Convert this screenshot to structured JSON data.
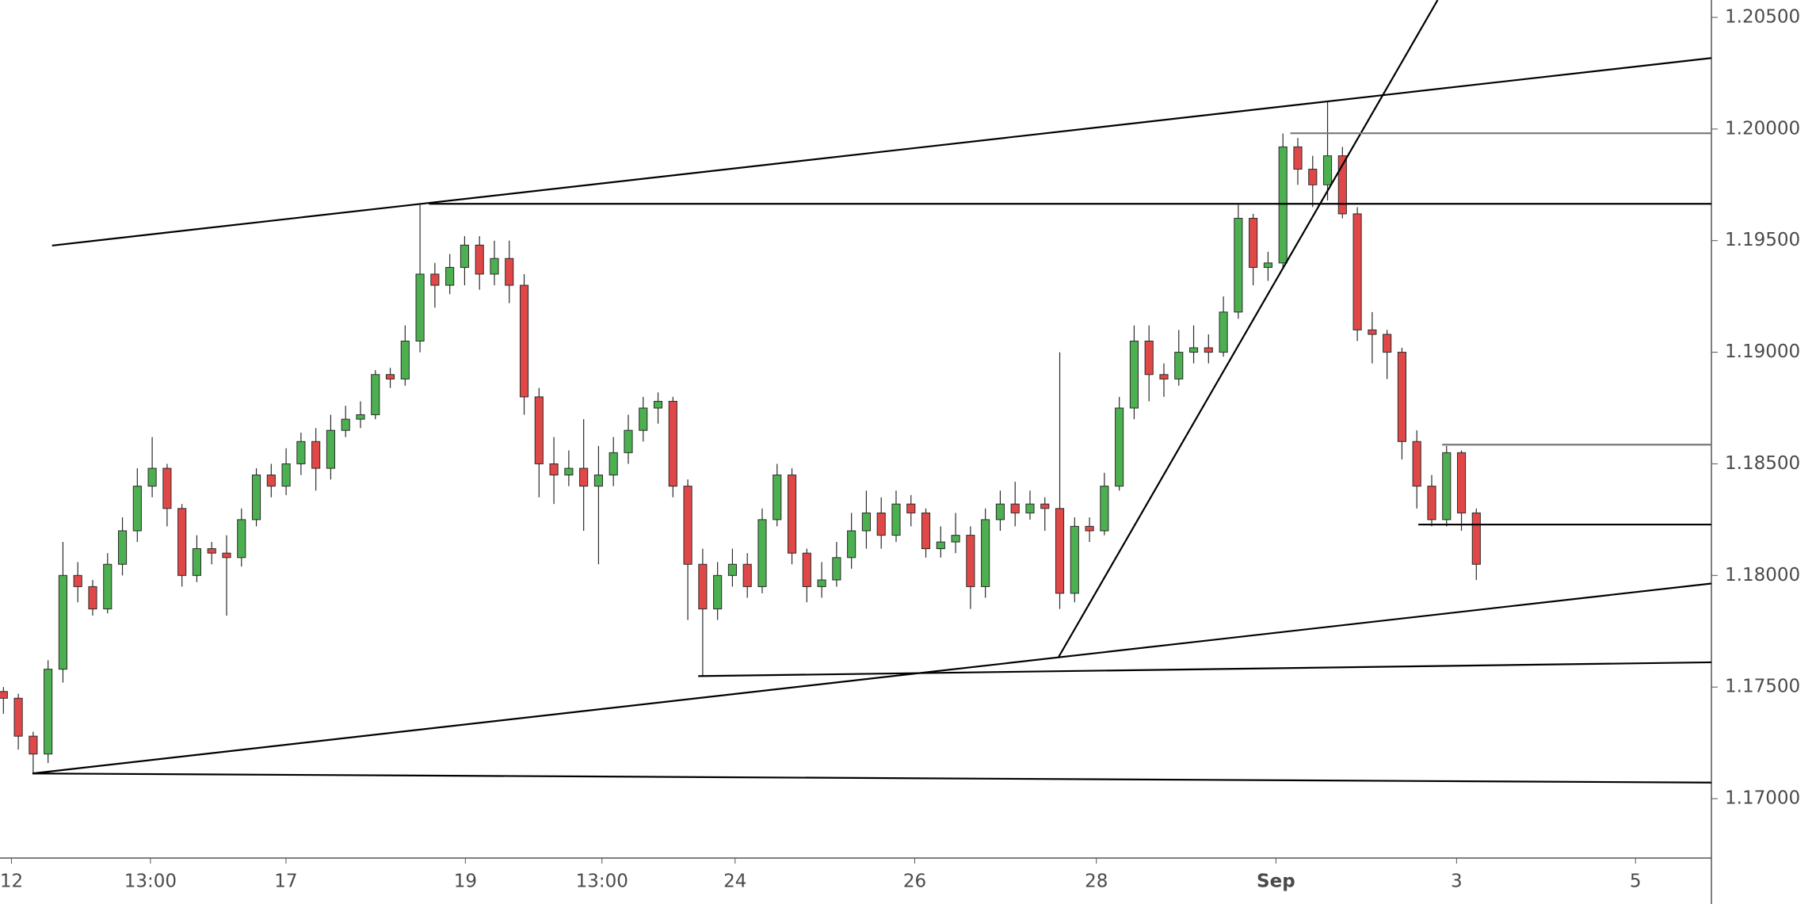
{
  "chart_data": {
    "type": "candlestick",
    "open": [
      1.1748,
      1.1745,
      1.1728,
      1.172,
      1.1758,
      1.18,
      1.1795,
      1.1785,
      1.1805,
      1.182,
      1.184,
      1.1848,
      1.183,
      1.18,
      1.1812,
      1.181,
      1.1808,
      1.1825,
      1.1845,
      1.184,
      1.185,
      1.186,
      1.1848,
      1.1865,
      1.187,
      1.1872,
      1.189,
      1.1888,
      1.1905,
      1.1935,
      1.193,
      1.1938,
      1.1948,
      1.1935,
      1.1942,
      1.193,
      1.188,
      1.185,
      1.1845,
      1.1848,
      1.184,
      1.1845,
      1.1855,
      1.1865,
      1.1875,
      1.1878,
      1.184,
      1.1805,
      1.1785,
      1.18,
      1.1805,
      1.1795,
      1.1825,
      1.1845,
      1.181,
      1.1795,
      1.1798,
      1.1808,
      1.182,
      1.1828,
      1.1818,
      1.1832,
      1.1828,
      1.1812,
      1.1815,
      1.1818,
      1.1795,
      1.1825,
      1.1832,
      1.1828,
      1.1832,
      1.183,
      1.1792,
      1.1822,
      1.182,
      1.184,
      1.1875,
      1.1905,
      1.189,
      1.1888,
      1.19,
      1.1902,
      1.19,
      1.1918,
      1.196,
      1.1938,
      1.194,
      1.1992,
      1.1982,
      1.1975,
      1.1988,
      1.1962,
      1.191,
      1.1908,
      1.19,
      1.186,
      1.184,
      1.1825,
      1.1855,
      1.1828
    ],
    "high": [
      1.175,
      1.1747,
      1.173,
      1.1762,
      1.1815,
      1.1806,
      1.1798,
      1.181,
      1.1826,
      1.1848,
      1.1862,
      1.185,
      1.1832,
      1.1818,
      1.1815,
      1.1818,
      1.183,
      1.1848,
      1.185,
      1.1857,
      1.1864,
      1.1866,
      1.1872,
      1.1876,
      1.1878,
      1.1892,
      1.1893,
      1.1912,
      1.1966,
      1.194,
      1.1944,
      1.1952,
      1.1952,
      1.195,
      1.195,
      1.1935,
      1.1884,
      1.1862,
      1.1856,
      1.187,
      1.1858,
      1.1862,
      1.1872,
      1.188,
      1.1882,
      1.188,
      1.1843,
      1.1812,
      1.1806,
      1.1812,
      1.181,
      1.183,
      1.185,
      1.1848,
      1.1812,
      1.1806,
      1.1815,
      1.1828,
      1.1838,
      1.1835,
      1.1838,
      1.1836,
      1.183,
      1.1822,
      1.1828,
      1.1822,
      1.183,
      1.1838,
      1.1842,
      1.1838,
      1.1835,
      1.19,
      1.1826,
      1.1826,
      1.1846,
      1.188,
      1.1912,
      1.1912,
      1.1895,
      1.191,
      1.1912,
      1.1908,
      1.1925,
      1.1966,
      1.1962,
      1.1945,
      1.1998,
      1.1996,
      1.1988,
      1.2012,
      1.1992,
      1.1965,
      1.1918,
      1.191,
      1.1902,
      1.1865,
      1.1845,
      1.1858,
      1.1856,
      1.183
    ],
    "low": [
      1.1738,
      1.1722,
      1.1711,
      1.1716,
      1.1752,
      1.1788,
      1.1782,
      1.1783,
      1.18,
      1.1815,
      1.1835,
      1.1822,
      1.1795,
      1.1797,
      1.1805,
      1.1782,
      1.1804,
      1.1822,
      1.1835,
      1.1836,
      1.1845,
      1.1838,
      1.1843,
      1.1862,
      1.1866,
      1.187,
      1.1884,
      1.1885,
      1.19,
      1.192,
      1.1926,
      1.193,
      1.1928,
      1.193,
      1.1922,
      1.1872,
      1.1835,
      1.1832,
      1.184,
      1.182,
      1.1805,
      1.184,
      1.185,
      1.186,
      1.1868,
      1.1835,
      1.178,
      1.1755,
      1.178,
      1.1795,
      1.179,
      1.1792,
      1.1822,
      1.1805,
      1.1788,
      1.179,
      1.1795,
      1.1803,
      1.1812,
      1.1812,
      1.1815,
      1.1822,
      1.1808,
      1.1808,
      1.181,
      1.1785,
      1.179,
      1.182,
      1.1822,
      1.1825,
      1.182,
      1.1785,
      1.1788,
      1.1815,
      1.1818,
      1.1838,
      1.187,
      1.1878,
      1.188,
      1.1885,
      1.1895,
      1.1895,
      1.1898,
      1.1915,
      1.193,
      1.1932,
      1.1938,
      1.1975,
      1.1965,
      1.1968,
      1.196,
      1.1905,
      1.1895,
      1.1888,
      1.1852,
      1.183,
      1.1822,
      1.1822,
      1.182,
      1.1798
    ],
    "close": [
      1.1745,
      1.1728,
      1.172,
      1.1758,
      1.18,
      1.1795,
      1.1785,
      1.1805,
      1.182,
      1.184,
      1.1848,
      1.183,
      1.18,
      1.1812,
      1.181,
      1.1808,
      1.1825,
      1.1845,
      1.184,
      1.185,
      1.186,
      1.1848,
      1.1865,
      1.187,
      1.1872,
      1.189,
      1.1888,
      1.1905,
      1.1935,
      1.193,
      1.1938,
      1.1948,
      1.1935,
      1.1942,
      1.193,
      1.188,
      1.185,
      1.1845,
      1.1848,
      1.184,
      1.1845,
      1.1855,
      1.1865,
      1.1875,
      1.1878,
      1.184,
      1.1805,
      1.1785,
      1.18,
      1.1805,
      1.1795,
      1.1825,
      1.1845,
      1.181,
      1.1795,
      1.1798,
      1.1808,
      1.182,
      1.1828,
      1.1818,
      1.1832,
      1.1828,
      1.1812,
      1.1815,
      1.1818,
      1.1795,
      1.1825,
      1.1832,
      1.1828,
      1.1832,
      1.183,
      1.1792,
      1.1822,
      1.182,
      1.184,
      1.1875,
      1.1905,
      1.189,
      1.1888,
      1.19,
      1.1902,
      1.19,
      1.1918,
      1.196,
      1.1938,
      1.194,
      1.1992,
      1.1982,
      1.1975,
      1.1988,
      1.1962,
      1.191,
      1.1908,
      1.19,
      1.186,
      1.184,
      1.1825,
      1.1855,
      1.1828,
      1.1805
    ],
    "up_color": "#4caf50",
    "down_color": "#e04848",
    "border_color": "#2b2b2b",
    "xlim": [
      -0.23,
      114.8
    ],
    "ylim": [
      1.16734,
      1.20578
    ],
    "yticks": [
      {
        "value": 1.17,
        "label": "1.17000"
      },
      {
        "value": 1.175,
        "label": "1.17500"
      },
      {
        "value": 1.18,
        "label": "1.18000"
      },
      {
        "value": 1.185,
        "label": "1.18500"
      },
      {
        "value": 1.19,
        "label": "1.19000"
      },
      {
        "value": 1.195,
        "label": "1.19500"
      },
      {
        "value": 1.2,
        "label": "1.20000"
      },
      {
        "value": 1.205,
        "label": "1.20500"
      }
    ],
    "xticks": [
      {
        "value": 0.54,
        "label": "12"
      },
      {
        "value": 9.88,
        "label": "13:00"
      },
      {
        "value": 18.99,
        "label": "17"
      },
      {
        "value": 31.05,
        "label": "19"
      },
      {
        "value": 40.23,
        "label": "13:00"
      },
      {
        "value": 49.18,
        "label": "24"
      },
      {
        "value": 61.25,
        "label": "26"
      },
      {
        "value": 73.46,
        "label": "28"
      },
      {
        "value": 85.53,
        "label": "Sep",
        "bold": true
      },
      {
        "value": 97.67,
        "label": "3"
      },
      {
        "value": 109.7,
        "label": "5"
      }
    ],
    "lines": [
      {
        "x": [
          3.27,
          114.8
        ],
        "y": [
          1.19478,
          1.20318
        ],
        "color": "#000000"
      },
      {
        "x": [
          28.6,
          114.8
        ],
        "y": [
          1.19665,
          1.19665
        ],
        "color": "#000000"
      },
      {
        "x": [
          70.9,
          96.4
        ],
        "y": [
          1.17632,
          1.20578
        ],
        "color": "#000000"
      },
      {
        "x": [
          1.95,
          114.8
        ],
        "y": [
          1.17113,
          1.17964
        ],
        "color": "#000000"
      },
      {
        "x": [
          1.95,
          114.8
        ],
        "y": [
          1.17113,
          1.17072
        ],
        "color": "#000000"
      },
      {
        "x": [
          46.7,
          114.8
        ],
        "y": [
          1.17549,
          1.17611
        ],
        "color": "#000000"
      },
      {
        "x": [
          86.5,
          114.8
        ],
        "y": [
          1.19981,
          1.19981
        ],
        "color": "#777777"
      },
      {
        "x": [
          96.7,
          114.8
        ],
        "y": [
          1.18586,
          1.18586
        ],
        "color": "#777777"
      },
      {
        "x": [
          95.1,
          114.8
        ],
        "y": [
          1.18228,
          1.18228
        ],
        "color": "#000000"
      }
    ]
  }
}
